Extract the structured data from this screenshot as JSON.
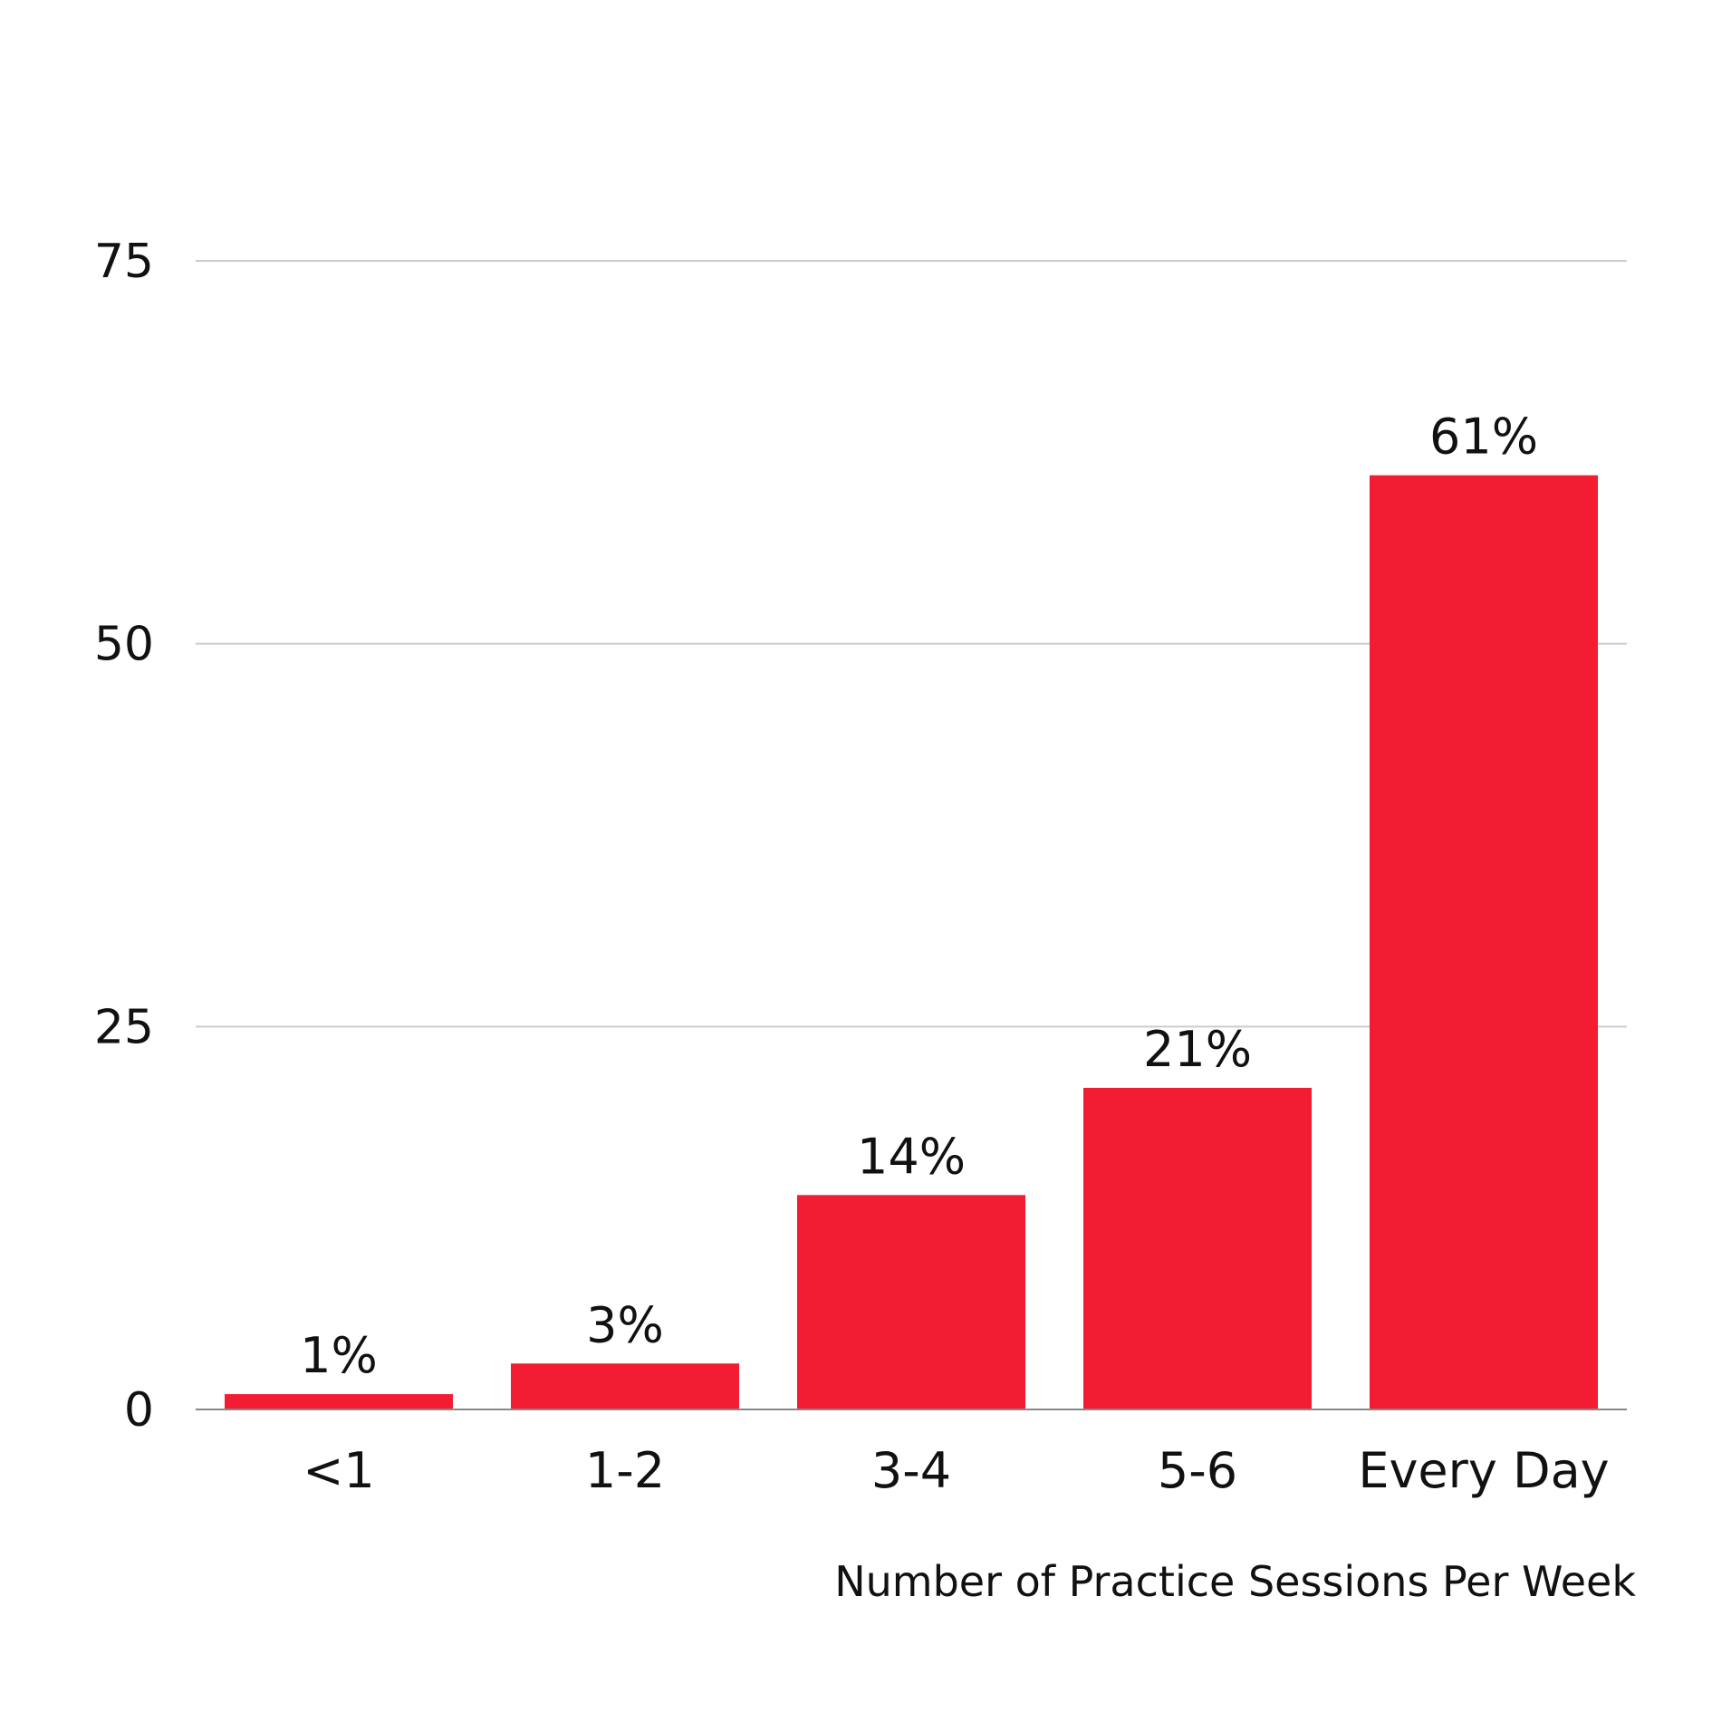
{
  "chart_data": {
    "type": "bar",
    "categories": [
      "<1",
      "1-2",
      "3-4",
      "5-6",
      "Every Day"
    ],
    "values": [
      1,
      3,
      14,
      21,
      61
    ],
    "data_labels": [
      "1%",
      "3%",
      "14%",
      "21%",
      "61%"
    ],
    "xlabel": "Number of Practice Sessions Per Week",
    "ylabel": "",
    "ylim": [
      0,
      75
    ],
    "yticks": [
      0,
      25,
      50,
      75
    ],
    "grid": true,
    "legend": "none",
    "bar_color": "#F21C33"
  }
}
